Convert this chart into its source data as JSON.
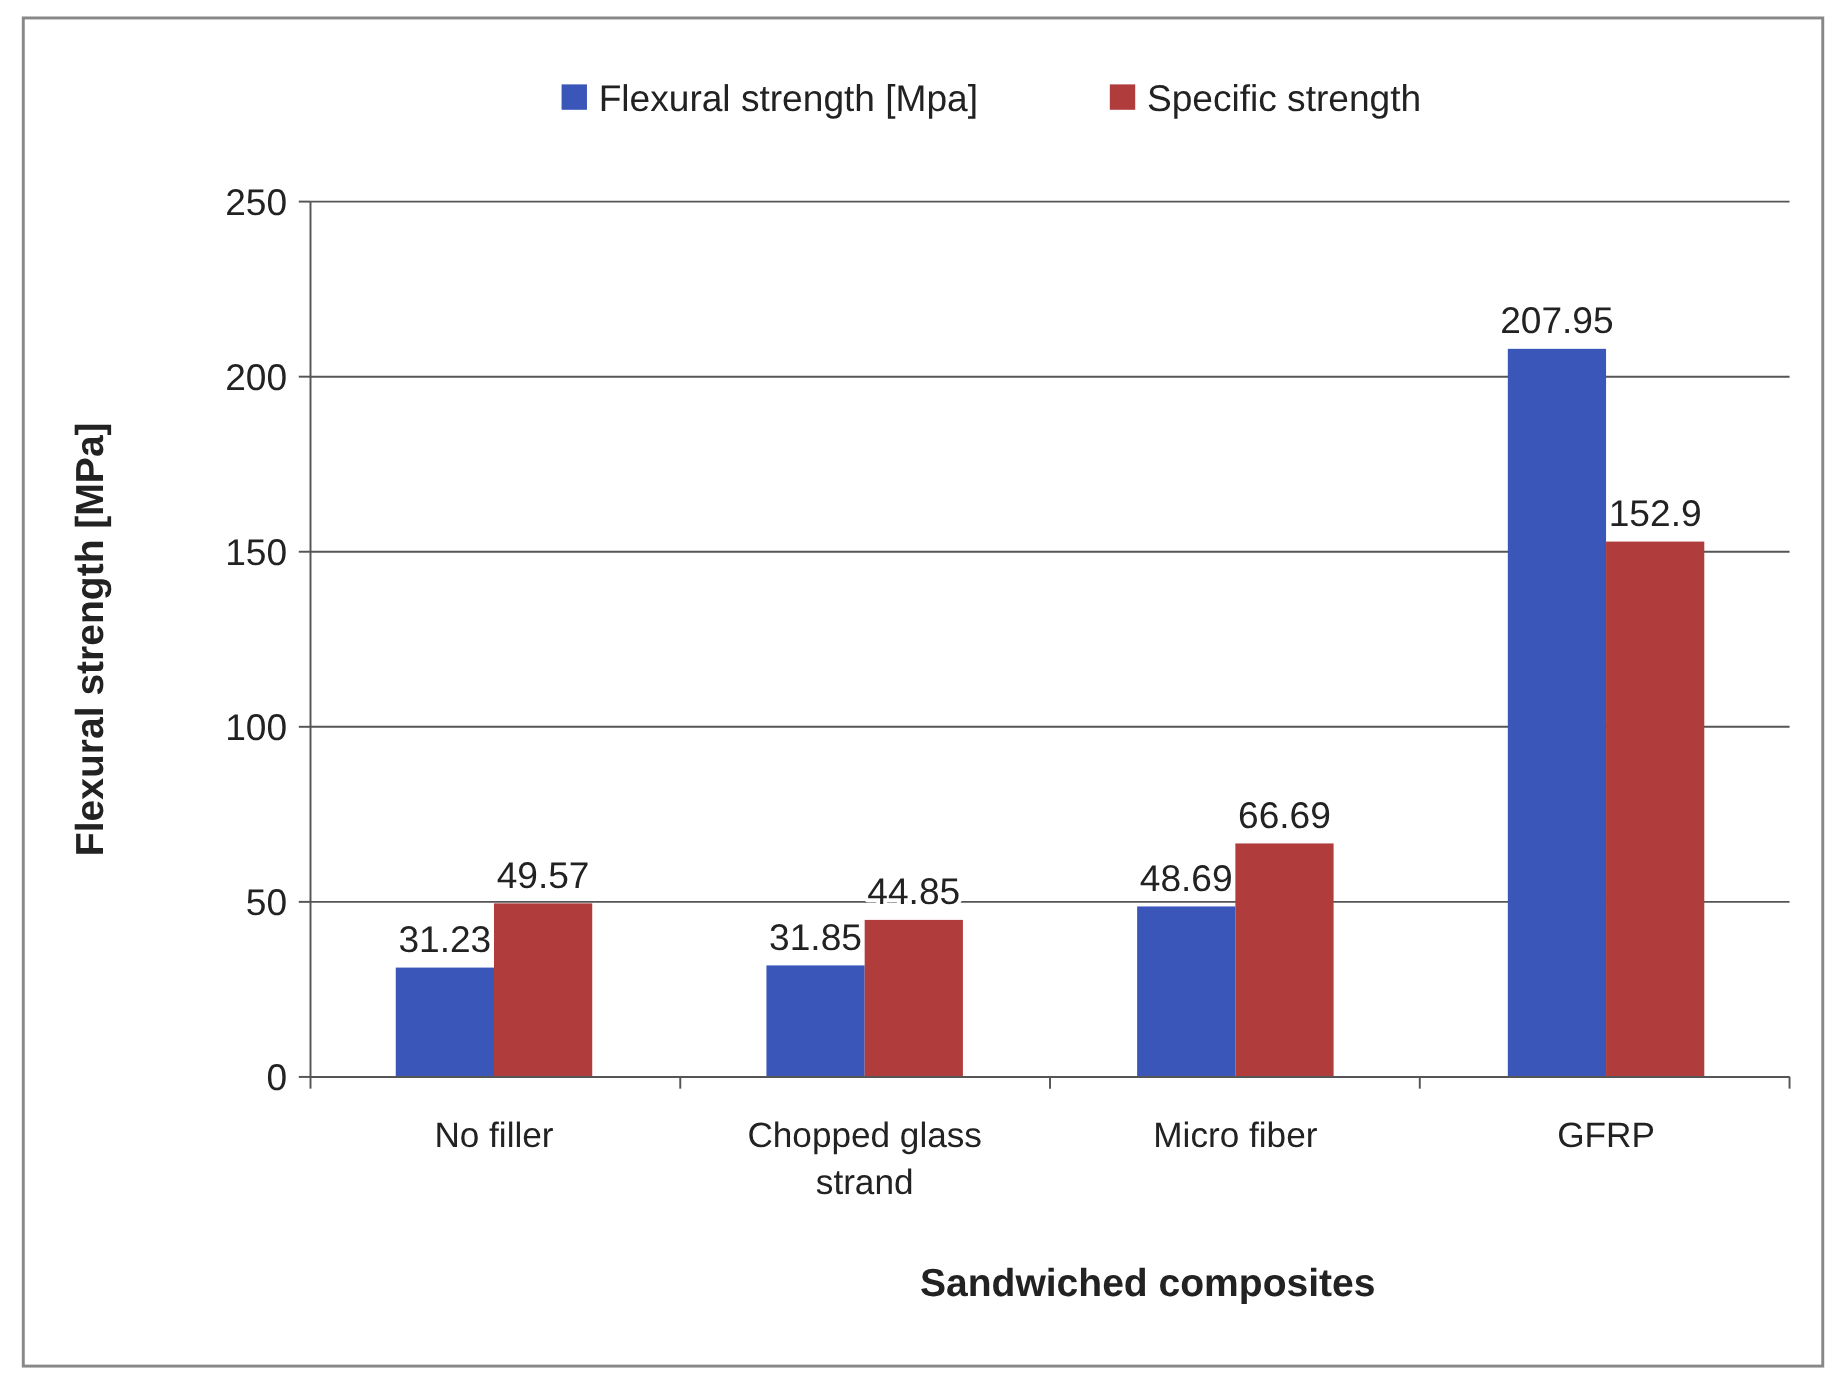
{
  "chart_data": {
    "type": "bar",
    "xlabel": "Sandwiched composites",
    "ylabel": "Flexural strength [MPa]",
    "categories": [
      "No filler",
      "Chopped glass strand",
      "Micro fiber",
      "GFRP"
    ],
    "series": [
      {
        "name": "Flexural strength [Mpa]",
        "color": "#3a56b8",
        "values": [
          31.23,
          31.85,
          48.69,
          207.95
        ]
      },
      {
        "name": "Specific strength",
        "color": "#b03c3c",
        "values": [
          49.57,
          44.85,
          66.69,
          152.9
        ]
      }
    ],
    "ylim": [
      0,
      250
    ],
    "yticks": [
      0,
      50,
      100,
      150,
      200,
      250
    ],
    "grid": "y",
    "legend": "top",
    "data_labels": true
  }
}
